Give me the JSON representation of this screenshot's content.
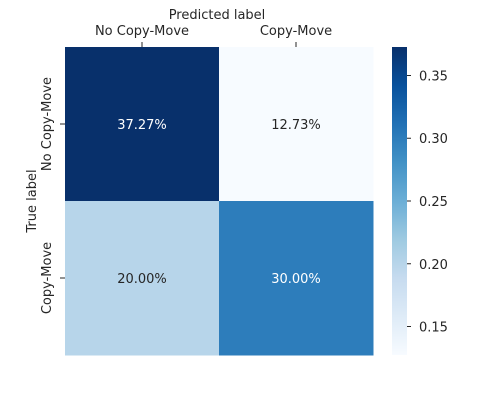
{
  "chart_data": {
    "type": "heatmap",
    "xlabel": "Predicted label",
    "ylabel": "True label",
    "x_categories": [
      "No Copy-Move",
      "Copy-Move"
    ],
    "y_categories": [
      "No Copy-Move",
      "Copy-Move"
    ],
    "values": [
      [
        0.3727,
        0.1273
      ],
      [
        0.2,
        0.3
      ]
    ],
    "cell_labels": [
      [
        "37.27%",
        "12.73%"
      ],
      [
        "20.00%",
        "30.00%"
      ]
    ],
    "colorbar": {
      "range": [
        0.1273,
        0.3727
      ],
      "ticks": [
        0.15,
        0.2,
        0.25,
        0.3,
        0.35
      ],
      "tick_labels": [
        "0.15",
        "0.20",
        "0.25",
        "0.30",
        "0.35"
      ],
      "colormap": "Blues",
      "color_stops": [
        "#f7fbff",
        "#deebf7",
        "#c6dbef",
        "#9ecae1",
        "#6baed6",
        "#4292c6",
        "#2171b5",
        "#08519c",
        "#08306b"
      ]
    },
    "x_axis_position": "top",
    "grid": false
  }
}
